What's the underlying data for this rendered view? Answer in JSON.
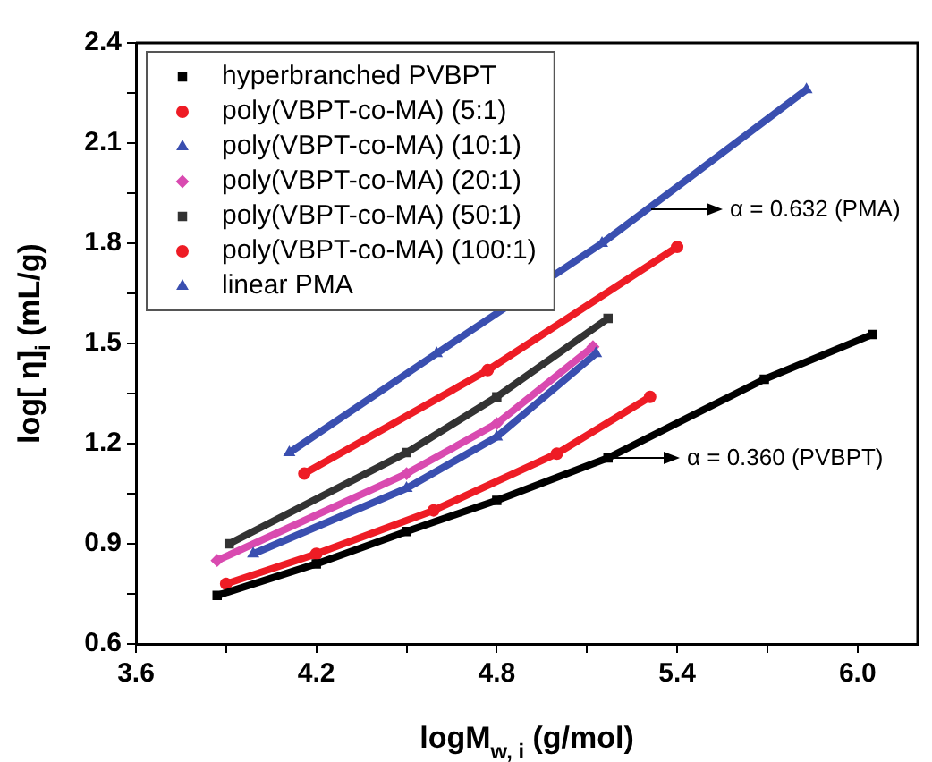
{
  "chart_data": {
    "type": "line",
    "xlabel": "logM$_{w, i}$ (g/mol)",
    "ylabel": "log[ η]$_{i}$ (mL/g)",
    "xlim": [
      3.6,
      6.2
    ],
    "xticks": [
      3.6,
      {
        "value": 3.9,
        "label": null
      },
      4.2,
      {
        "value": 4.5,
        "label": null
      },
      4.8,
      {
        "value": 5.1,
        "label": null
      },
      5.4,
      {
        "value": 5.7,
        "label": null
      },
      {
        "value": 6,
        "label": "6.0"
      }
    ],
    "ylim": [
      0.6,
      2.4
    ],
    "yticks": [
      0.6,
      {
        "value": 0.75,
        "label": null
      },
      0.9,
      {
        "value": 1.05,
        "label": null
      },
      1.2,
      {
        "value": 1.35,
        "label": null
      },
      1.5,
      {
        "value": 1.65,
        "label": null
      },
      1.8,
      {
        "value": 1.95,
        "label": null
      },
      2.1,
      {
        "value": 2.25,
        "label": null
      },
      2.4
    ],
    "grid": false,
    "legend": "top left",
    "series": [
      {
        "name": "hyperbranched PVBPT",
        "color": "#000000",
        "marker": "square",
        "x": [
          3.87,
          4.2,
          4.5,
          4.8,
          5.17,
          5.69,
          6.05
        ],
        "values": [
          0.745,
          0.84,
          0.937,
          1.03,
          1.157,
          1.393,
          1.527
        ]
      },
      {
        "name": "poly(VBPT-co-MA) (5:1)",
        "color": "#ee1c25",
        "marker": "circle",
        "x": [
          3.9,
          4.2,
          4.59,
          5.0,
          5.31
        ],
        "values": [
          0.78,
          0.87,
          1.0,
          1.17,
          1.34
        ]
      },
      {
        "name": "poly(VBPT-co-MA) (10:1)",
        "color": "#3a4fb0",
        "marker": "triangle",
        "x": [
          3.99,
          4.5,
          4.8,
          5.13
        ],
        "values": [
          0.87,
          1.066,
          1.22,
          1.47
        ]
      },
      {
        "name": "poly(VBPT-co-MA) (20:1)",
        "color": "#d94ab0",
        "marker": "diamond",
        "x": [
          3.87,
          4.5,
          4.8,
          5.12
        ],
        "values": [
          0.85,
          1.11,
          1.26,
          1.49
        ]
      },
      {
        "name": "poly(VBPT-co-MA) (50:1)",
        "color": "#333333",
        "marker": "square",
        "x": [
          3.91,
          4.5,
          4.8,
          5.17
        ],
        "values": [
          0.9,
          1.173,
          1.34,
          1.575
        ]
      },
      {
        "name": "poly(VBPT-co-MA) (100:1)",
        "color": "#ee1c25",
        "marker": "circle",
        "x": [
          4.16,
          4.77,
          5.4
        ],
        "values": [
          1.11,
          1.42,
          1.789
        ]
      },
      {
        "name": "linear PMA",
        "color": "#3a4fb0",
        "marker": "triangle",
        "x": [
          4.11,
          4.6,
          5.15,
          5.83
        ],
        "values": [
          1.173,
          1.47,
          1.8,
          2.26
        ]
      }
    ],
    "annotations": [
      "α = 0.632 (PMA)",
      "α = 0.360 (PVBPT)"
    ]
  }
}
